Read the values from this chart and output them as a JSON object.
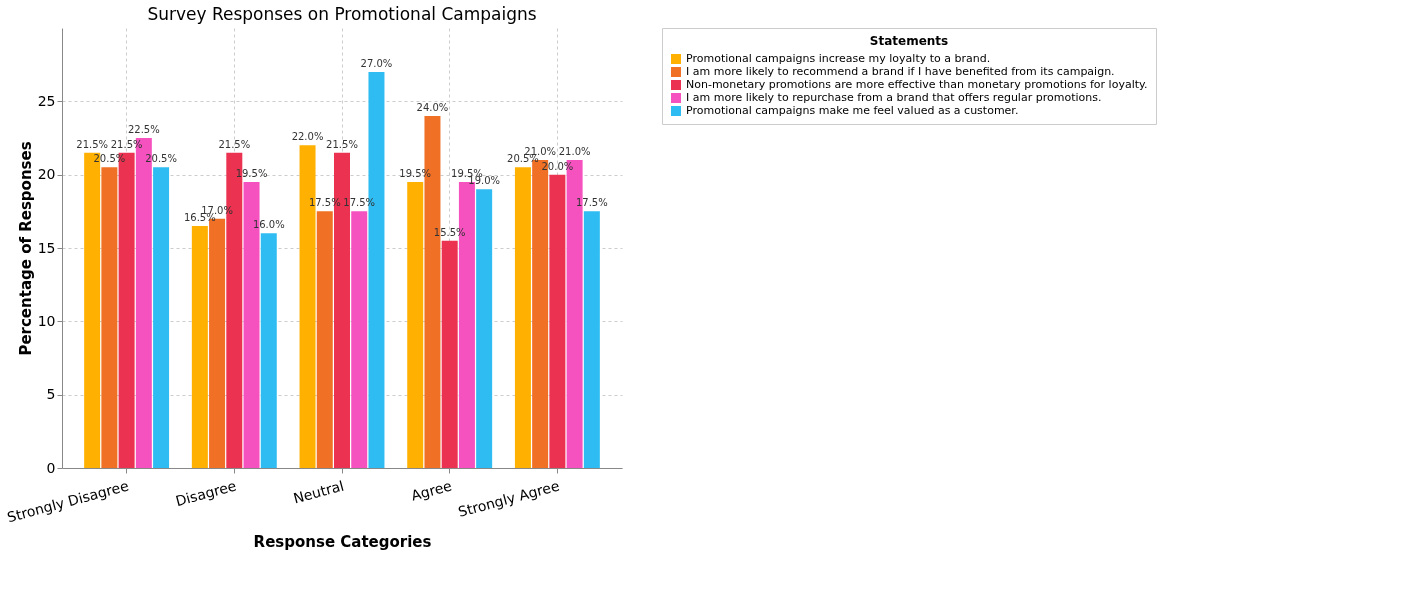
{
  "chart_data": {
    "type": "bar",
    "title": "Survey Responses on Promotional Campaigns",
    "xlabel": "Response Categories",
    "ylabel": "Percentage of Responses",
    "legend_title": "Statements",
    "categories": [
      "Strongly Disagree",
      "Disagree",
      "Neutral",
      "Agree",
      "Strongly Agree"
    ],
    "series": [
      {
        "name": "Promotional campaigns increase my loyalty to a brand.",
        "color": "#ffb000",
        "values": [
          21.5,
          16.5,
          22.0,
          19.5,
          20.5
        ],
        "value_labels": [
          "21.5%",
          "16.5%",
          "22.0%",
          "19.5%",
          "20.5%"
        ]
      },
      {
        "name": "I am more likely to recommend a brand if I have benefited from its campaign.",
        "color": "#f07025",
        "values": [
          20.5,
          17.0,
          17.5,
          24.0,
          21.0
        ],
        "value_labels": [
          "20.5%",
          "17.0%",
          "17.5%",
          "24.0%",
          "21.0%"
        ]
      },
      {
        "name": "Non-monetary promotions are more effective than monetary promotions for loyalty.",
        "color": "#eb3250",
        "values": [
          21.5,
          21.5,
          21.5,
          15.5,
          20.0
        ],
        "value_labels": [
          "21.5%",
          "21.5%",
          "21.5%",
          "15.5%",
          "20.0%"
        ]
      },
      {
        "name": "I am more likely to repurchase from a brand that offers regular promotions.",
        "color": "#f552c0",
        "values": [
          22.5,
          19.5,
          17.5,
          19.5,
          21.0
        ],
        "value_labels": [
          "22.5%",
          "19.5%",
          "17.5%",
          "19.5%",
          "21.0%"
        ]
      },
      {
        "name": "Promotional campaigns make me feel valued as a customer.",
        "color": "#2fbcf2",
        "values": [
          20.5,
          16.0,
          27.0,
          19.0,
          17.5
        ],
        "value_labels": [
          "20.5%",
          "16.0%",
          "27.0%",
          "19.0%",
          "17.5%"
        ]
      }
    ],
    "ylim": [
      0,
      30
    ],
    "yticks": [
      0,
      5,
      10,
      15,
      20,
      25
    ],
    "grid": true,
    "legend": "top right"
  }
}
